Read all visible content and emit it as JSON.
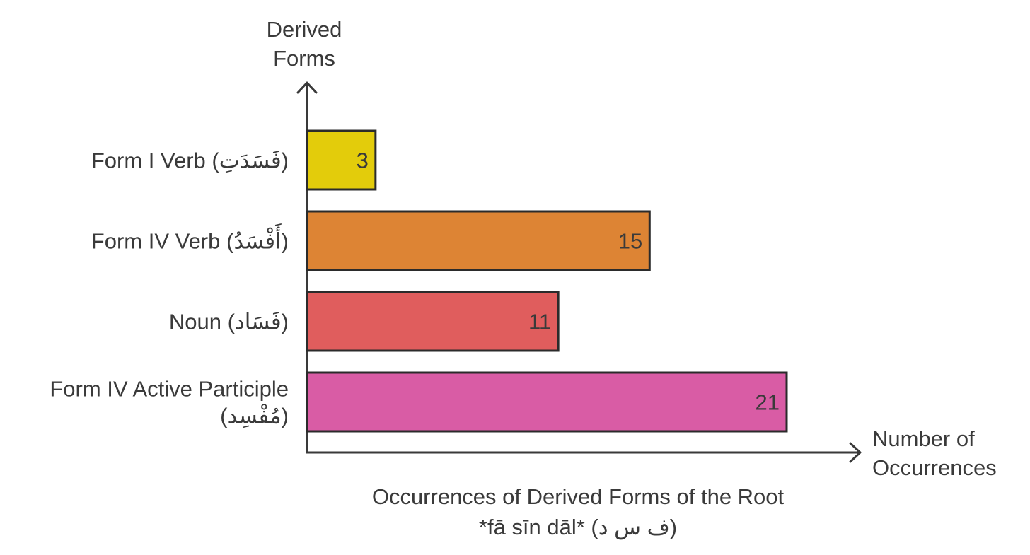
{
  "chart_data": {
    "type": "bar",
    "orientation": "horizontal",
    "title_lines": [
      "Occurrences of Derived Forms of the Root",
      "*fā sīn dāl* (ف س د)"
    ],
    "ylabel_lines": [
      "Derived",
      "Forms"
    ],
    "xlabel_lines": [
      "Number of",
      "Occurrences"
    ],
    "categories": [
      {
        "lines": [
          "Form I Verb (فَسَدَتِ)"
        ]
      },
      {
        "lines": [
          "Form IV Verb (أَفْسَدُ)"
        ]
      },
      {
        "lines": [
          "Noun (فَسَاد)"
        ]
      },
      {
        "lines": [
          "Form IV Active Participle",
          "(مُفْسِد)"
        ]
      }
    ],
    "values": [
      3,
      15,
      11,
      21
    ],
    "value_labels": [
      "3",
      "15",
      "11",
      "21"
    ],
    "colors": [
      "#e3cc0b",
      "#dd8434",
      "#e05d5d",
      "#d95ca5"
    ],
    "xlim": [
      0,
      21
    ],
    "grid": false,
    "legend": "none"
  }
}
